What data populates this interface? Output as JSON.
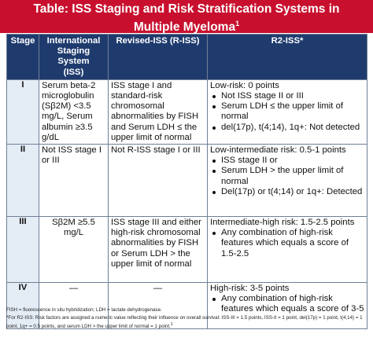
{
  "title": {
    "line1": "Table: ISS Staging and Risk Stratification Systems in",
    "line2": "Multiple Myeloma",
    "superscript": "1"
  },
  "columns": {
    "stage": "Stage",
    "iss_line1": "International",
    "iss_line2": "Staging System",
    "iss_line3": "(ISS)",
    "riss": "Revised-ISS (R-ISS)",
    "r2iss": "R2-ISS*"
  },
  "rows": [
    {
      "stage": "I",
      "iss": "Serum beta-2 microglobulin (Sβ2M) <3.5 mg/L, Serum albumin ≥3.5 g/dL",
      "riss": "ISS stage I and standard-risk chromosomal abnormalities by FISH and Serum LDH ≤ the upper limit of normal",
      "r2iss_heading": "Low-risk: 0 points",
      "r2iss_bullets": [
        "Not ISS stage II or III",
        "Serum LDH ≤ the upper limit of normal",
        "del(17p), t(4;14), 1q+: Not detected"
      ]
    },
    {
      "stage": "II",
      "iss": "Not ISS stage I or III",
      "riss": "Not R-ISS stage I or III",
      "r2iss_heading": "Low-intermediate risk: 0.5-1 points",
      "r2iss_bullets": [
        "ISS stage II or",
        "Serum LDH > the upper limit of normal",
        "Del(17p) or t(4;14) or 1q+: Detected"
      ]
    },
    {
      "stage": "III",
      "iss": "Sβ2M ≥5.5 mg/L",
      "riss": "ISS stage III and either high-risk chromosomal abnormalities by FISH or Serum LDH > the upper limit of normal",
      "r2iss_heading": "Intermediate-high risk: 1.5-2.5 points",
      "r2iss_bullets": [
        "Any combination of high-risk features which equals a score of 1.5-2.5"
      ]
    },
    {
      "stage": "IV",
      "iss": "—",
      "riss": "—",
      "r2iss_heading": "High-risk: 3-5 points",
      "r2iss_bullets": [
        "Any combination of high-risk features which equals a score of 3-5"
      ]
    }
  ],
  "footnotes": {
    "line1": "FISH = fluorescence in situ hybridization; LDH = lactate dehydrogenase.",
    "line2": "*For R2-ISS: Risk factors are assigned a numeric value reflecting their influence on overall survival: ISS-III = 1.5 points, ISS-II = 1 point, del(17p) = 1 point, t(4;14) = 1 point, 1q+ = 0.5 points, and serum LDH > the upper limit of normal = 1 point.",
    "line2_sup": "1"
  }
}
